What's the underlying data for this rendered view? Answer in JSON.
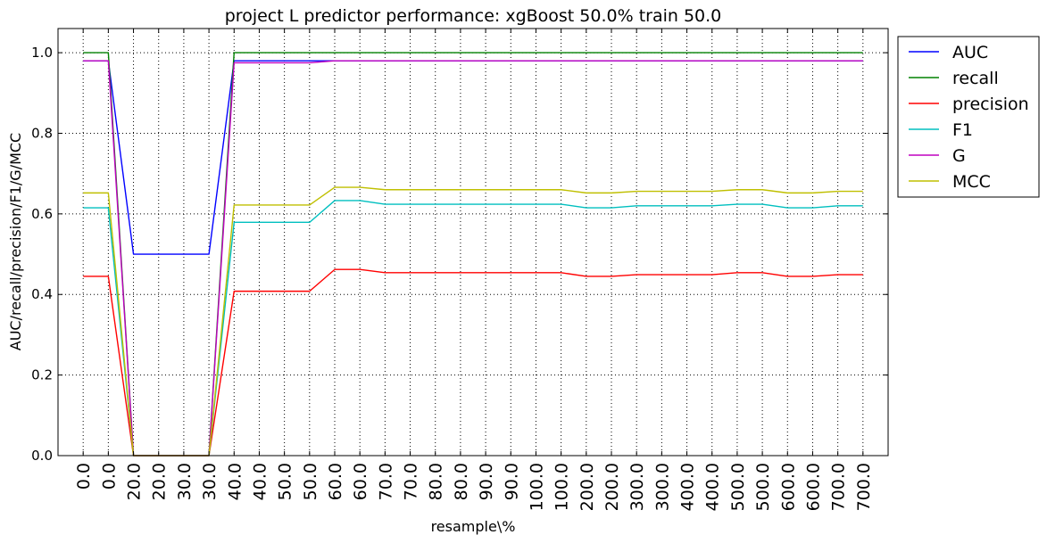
{
  "chart_data": {
    "type": "line",
    "title": "project L predictor performance: xgBoost 50.0% train 50.0",
    "xlabel": "resample\\%",
    "ylabel": "AUC/recall/precision/F1/G/MCC",
    "ylim": [
      0,
      1.06
    ],
    "yticks": [
      "0.0",
      "0.2",
      "0.4",
      "0.6",
      "0.8",
      "1.0"
    ],
    "grid": true,
    "legend_position": "outside-right-top",
    "categories": [
      "0.0",
      "0.0",
      "20.0",
      "20.0",
      "30.0",
      "30.0",
      "40.0",
      "40.0",
      "50.0",
      "50.0",
      "60.0",
      "60.0",
      "70.0",
      "70.0",
      "80.0",
      "80.0",
      "90.0",
      "90.0",
      "100.0",
      "100.0",
      "200.0",
      "200.0",
      "300.0",
      "300.0",
      "400.0",
      "400.0",
      "500.0",
      "500.0",
      "600.0",
      "600.0",
      "700.0",
      "700.0"
    ],
    "series": [
      {
        "name": "AUC",
        "color": "#0000ff",
        "values": [
          0.98,
          0.98,
          0.5,
          0.5,
          0.5,
          0.5,
          0.98,
          0.98,
          0.98,
          0.98,
          0.98,
          0.98,
          0.98,
          0.98,
          0.98,
          0.98,
          0.98,
          0.98,
          0.98,
          0.98,
          0.98,
          0.98,
          0.98,
          0.98,
          0.98,
          0.98,
          0.98,
          0.98,
          0.98,
          0.98,
          0.98,
          0.98
        ]
      },
      {
        "name": "recall",
        "color": "#008000",
        "values": [
          1.0,
          1.0,
          0.0,
          0.0,
          0.0,
          0.0,
          1.0,
          1.0,
          1.0,
          1.0,
          1.0,
          1.0,
          1.0,
          1.0,
          1.0,
          1.0,
          1.0,
          1.0,
          1.0,
          1.0,
          1.0,
          1.0,
          1.0,
          1.0,
          1.0,
          1.0,
          1.0,
          1.0,
          1.0,
          1.0,
          1.0,
          1.0
        ]
      },
      {
        "name": "precision",
        "color": "#ff0000",
        "values": [
          0.445,
          0.445,
          0.0,
          0.0,
          0.0,
          0.0,
          0.408,
          0.408,
          0.408,
          0.408,
          0.462,
          0.462,
          0.454,
          0.454,
          0.454,
          0.454,
          0.454,
          0.454,
          0.454,
          0.454,
          0.445,
          0.445,
          0.449,
          0.449,
          0.449,
          0.449,
          0.454,
          0.454,
          0.445,
          0.445,
          0.449,
          0.449
        ]
      },
      {
        "name": "F1",
        "color": "#00bfbf",
        "values": [
          0.615,
          0.615,
          0.0,
          0.0,
          0.0,
          0.0,
          0.579,
          0.579,
          0.579,
          0.579,
          0.633,
          0.633,
          0.624,
          0.624,
          0.624,
          0.624,
          0.624,
          0.624,
          0.624,
          0.624,
          0.615,
          0.615,
          0.62,
          0.62,
          0.62,
          0.62,
          0.624,
          0.624,
          0.615,
          0.615,
          0.62,
          0.62
        ]
      },
      {
        "name": "G",
        "color": "#bf00bf",
        "values": [
          0.98,
          0.98,
          0.0,
          0.0,
          0.0,
          0.0,
          0.975,
          0.975,
          0.975,
          0.975,
          0.98,
          0.98,
          0.98,
          0.98,
          0.98,
          0.98,
          0.98,
          0.98,
          0.98,
          0.98,
          0.98,
          0.98,
          0.98,
          0.98,
          0.98,
          0.98,
          0.98,
          0.98,
          0.98,
          0.98,
          0.98,
          0.98
        ]
      },
      {
        "name": "MCC",
        "color": "#bfbf00",
        "values": [
          0.652,
          0.652,
          0.0,
          0.0,
          0.0,
          0.0,
          0.622,
          0.622,
          0.622,
          0.622,
          0.666,
          0.666,
          0.66,
          0.66,
          0.66,
          0.66,
          0.66,
          0.66,
          0.66,
          0.66,
          0.652,
          0.652,
          0.656,
          0.656,
          0.656,
          0.656,
          0.66,
          0.66,
          0.652,
          0.652,
          0.656,
          0.656
        ]
      }
    ]
  }
}
